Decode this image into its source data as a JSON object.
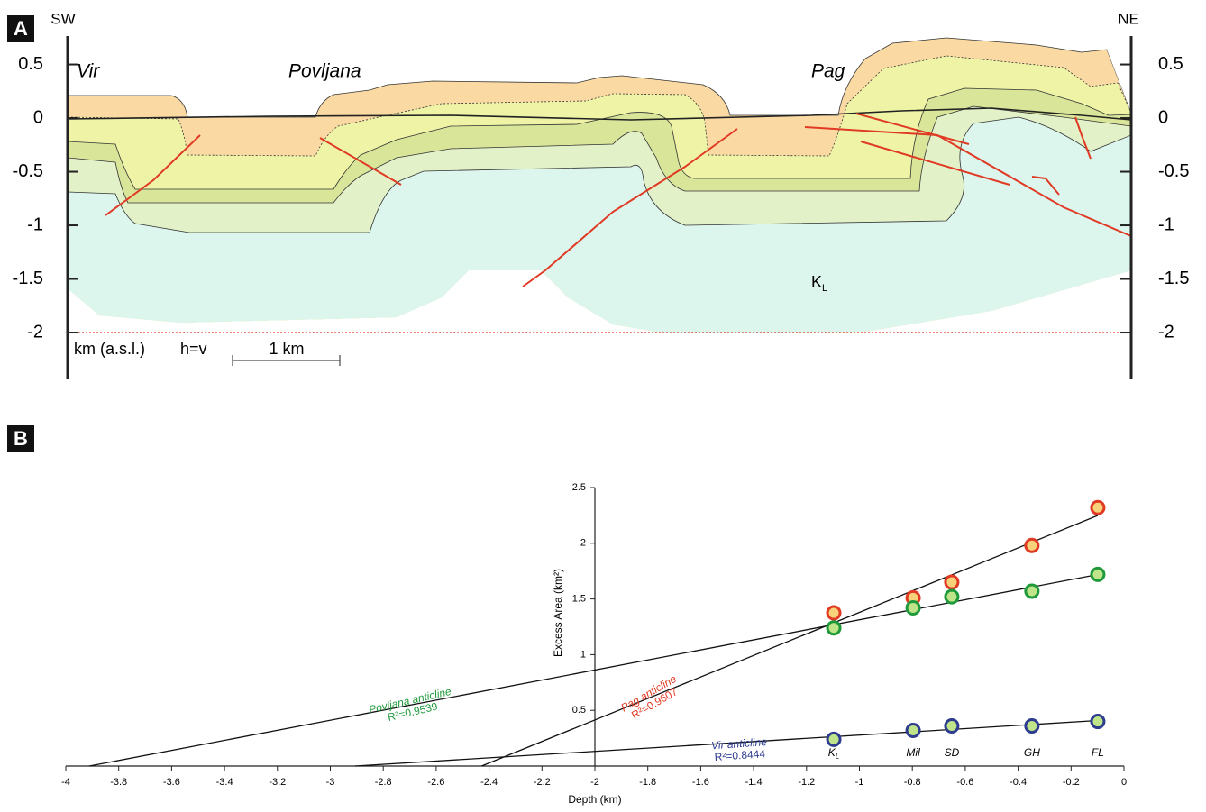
{
  "panel_a": {
    "label": "A",
    "left_end": "SW",
    "right_end": "NE",
    "places": [
      "Vir",
      "Povljana",
      "Pag"
    ],
    "unit": "K",
    "unit_sub": "L",
    "axis_label": "km (a.s.l.)",
    "ratio": "h=v",
    "scale_bar": "1 km",
    "ylim": [
      -2.42,
      0.95
    ],
    "yticks": [
      0.5,
      0,
      -0.5,
      -1,
      -1.5,
      -2
    ]
  },
  "chart_data": {
    "type": "scatter",
    "panel_label": "B",
    "xlabel": "Depth (km)",
    "ylabel": "Excess Area (km²)",
    "xlim": [
      -4,
      0
    ],
    "ylim": [
      0,
      2.5
    ],
    "xticks": [
      -4,
      -3.8,
      -3.6,
      -3.4,
      -3.2,
      -3,
      -2.8,
      -2.6,
      -2.4,
      -2.2,
      -2,
      -1.8,
      -1.6,
      -1.4,
      -1.2,
      -1,
      -0.8,
      -0.6,
      -0.4,
      -0.2,
      0
    ],
    "yticks": [
      0.5,
      1,
      1.5,
      2,
      2.5
    ],
    "y_axis_at": -2,
    "x": [
      -1.097,
      -0.797,
      -0.651,
      -0.348,
      -0.099
    ],
    "x_labels": [
      "K",
      "Mil",
      "SD",
      "GH",
      "FL"
    ],
    "x_label_sub": "L",
    "series": [
      {
        "name": "Pag anticline",
        "r2_label": "R²=0.9607",
        "color": "#e03a24",
        "fill": "#f7d27a",
        "values": [
          1.375,
          1.51,
          1.65,
          1.98,
          2.32
        ]
      },
      {
        "name": "Povljana anticline",
        "r2_label": "R²=0.9539",
        "color": "#1f9a3a",
        "fill": "#bfe48a",
        "values": [
          1.24,
          1.42,
          1.52,
          1.57,
          1.72
        ]
      },
      {
        "name": "Vir anticline",
        "r2_label": "R²=0.8444",
        "color": "#2d3c8f",
        "fill": "#bfe48a",
        "values": [
          0.24,
          0.32,
          0.36,
          0.36,
          0.4
        ]
      }
    ]
  }
}
